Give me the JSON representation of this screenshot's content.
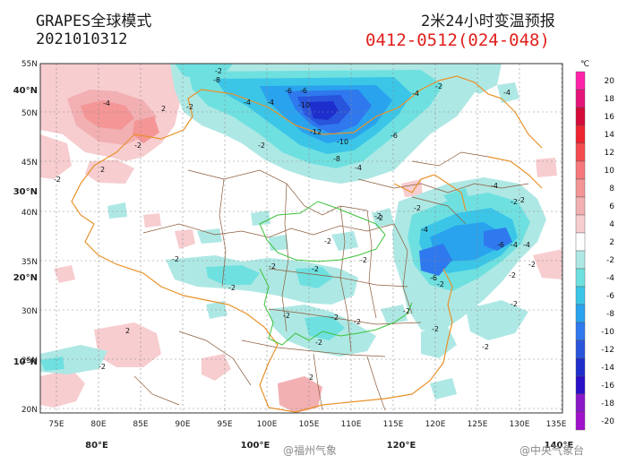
{
  "header": {
    "model_title": "GRAPES全球模式",
    "init_time": "2021010312",
    "product_title": "2米24小时变温预报",
    "time_range": "0412-0512(024-048)"
  },
  "axes": {
    "lat_labels": [
      "55N",
      "50N",
      "45N",
      "40N",
      "35N",
      "30N",
      "25N",
      "20N"
    ],
    "lon_labels": [
      "75E",
      "80E",
      "85E",
      "90E",
      "95E",
      "100E",
      "105E",
      "110E",
      "115E",
      "120E",
      "125E",
      "130E",
      "135E"
    ],
    "bold_lat_labels": [
      "40°N",
      "30°N",
      "20°N",
      "10°N"
    ],
    "bold_lon_labels": [
      "80°E",
      "100°E",
      "120°E",
      "140°E"
    ]
  },
  "legend": {
    "unit": "℃",
    "levels": [
      "20",
      "18",
      "16",
      "14",
      "12",
      "10",
      "8",
      "6",
      "4",
      "2",
      "-2",
      "-4",
      "-6",
      "-8",
      "-10",
      "-12",
      "-14",
      "-16",
      "-18",
      "-20"
    ],
    "colors": [
      "#ff22aa",
      "#e6147a",
      "#d60a38",
      "#ee2430",
      "#f54b4f",
      "#f7787c",
      "#f49596",
      "#f2b0b3",
      "#f7cdd0",
      "#ffffff",
      "#aee8e4",
      "#6fe0e0",
      "#3bc6e8",
      "#2aa3ee",
      "#2f78ee",
      "#2954dc",
      "#1e2ecc",
      "#2a10c8",
      "#8a17c8",
      "#a012cc"
    ]
  },
  "contour_labels": {
    "mongolia": [
      "-2",
      "-8",
      "-6",
      "-4",
      "-4",
      "-6",
      "-10",
      "-12",
      "-10",
      "-8",
      "-6",
      "-4",
      "-2",
      "-4",
      "-4",
      "-2",
      "-2"
    ],
    "xinjiang": [
      "-4",
      "2",
      "-2",
      "-2",
      "2",
      "2",
      "-2"
    ],
    "east": [
      "-4",
      "-2",
      "-2",
      "-6",
      "-4",
      "-4",
      "-4",
      "-2",
      "-2",
      "-2",
      "-2",
      "-6",
      "-2",
      "-2",
      "-2",
      "-2"
    ],
    "central": [
      "-2",
      "-2",
      "-2",
      "-2",
      "-2",
      "-2",
      "-2",
      "-2",
      "-2",
      "-2",
      "-2",
      "2",
      "-2"
    ]
  },
  "watermarks": [
    "@福州气象",
    "@中央气象台"
  ]
}
